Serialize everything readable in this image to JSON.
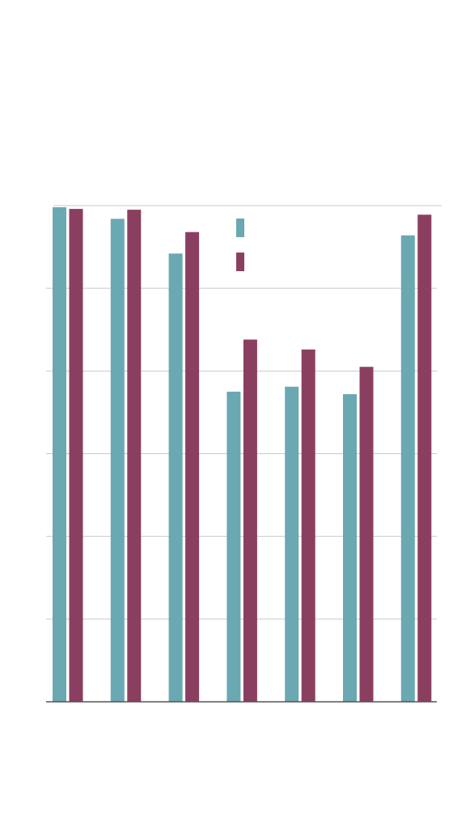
{
  "chart_data": {
    "type": "bar",
    "title": "",
    "xlabel": "",
    "ylabel": "",
    "categories": [
      "",
      "",
      "",
      "",
      "",
      "",
      ""
    ],
    "ylim": [
      0,
      6
    ],
    "grid": true,
    "legend_position": "top-center",
    "series": [
      {
        "color": "#6aa8b2",
        "values": [
          5.98,
          5.84,
          5.42,
          3.75,
          3.81,
          3.72,
          5.64
        ]
      },
      {
        "color": "#8b3f60",
        "values": [
          5.96,
          5.95,
          5.68,
          4.38,
          4.26,
          4.05,
          5.89
        ]
      }
    ]
  }
}
